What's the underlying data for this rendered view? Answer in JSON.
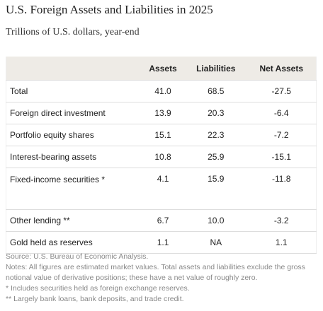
{
  "header": {
    "title": "U.S. Foreign Assets and Liabilities in 2025",
    "subtitle": "Trillions of U.S. dollars, year-end"
  },
  "table": {
    "columns": [
      "",
      "Assets",
      "Liabilities",
      "Net Assets"
    ],
    "rows": [
      [
        "Total",
        "41.0",
        "68.5",
        "-27.5"
      ],
      [
        "Foreign direct investment",
        "13.9",
        "20.3",
        "-6.4"
      ],
      [
        "Portfolio equity shares",
        "15.1",
        "22.3",
        "-7.2"
      ],
      [
        "Interest-bearing assets",
        "10.8",
        "25.9",
        "-15.1"
      ],
      [
        "Fixed-income securities *",
        "4.1",
        "15.9",
        "-11.8"
      ],
      [
        "Other lending **",
        "6.7",
        "10.0",
        "-3.2"
      ],
      [
        "Gold held as reserves",
        "1.1",
        "NA",
        "1.1"
      ]
    ]
  },
  "notes": [
    "Source: U.S. Bureau of Economic Analysis.",
    "Notes: All figures are estimated market values. Total assets and liabilities exclude the gross notional value of derivative positions; these have a net value of roughly zero.",
    "* Includes securities held as foreign exchange reserves.",
    "** Largely bank loans, bank deposits, and trade credit."
  ]
}
